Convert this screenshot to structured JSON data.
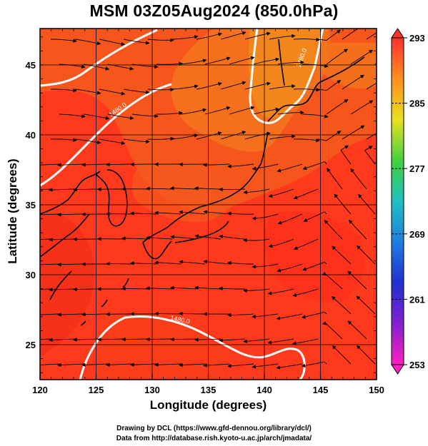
{
  "title": "MSM 03Z05Aug2024 (850.0hPa)",
  "axes": {
    "xlabel": "Longitude (degrees)",
    "ylabel": "Latitude  (degrees)",
    "x_ticks": [
      "120",
      "125",
      "130",
      "135",
      "140",
      "145",
      "150"
    ],
    "y_ticks": [
      "25",
      "30",
      "35",
      "40",
      "45"
    ],
    "xlim": [
      120,
      150
    ],
    "ylim": [
      22.5,
      47.6
    ]
  },
  "colorbar": {
    "labels": [
      "293",
      "285",
      "277",
      "269",
      "261",
      "253"
    ],
    "min": 253,
    "max": 293
  },
  "contour_label": "1480.0",
  "credits": {
    "line1": "Drawing by DCL (https://www.gfd-dennou.org/library/dcl/)",
    "line2": "Data from http://database.rish.kyoto-u.ac.jp/arch/jmadata/"
  },
  "colors": {
    "field_low": "#ff3020",
    "field_high": "#f48a1c",
    "contour": "#ffffff",
    "coast": "#000000"
  }
}
